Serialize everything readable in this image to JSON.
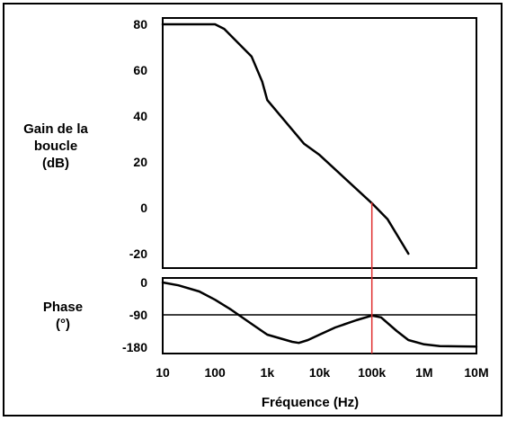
{
  "chart_data": [
    {
      "type": "line",
      "ylabel": [
        "Gain de la",
        "boucle",
        "(dB)"
      ],
      "yticks": [
        80,
        60,
        40,
        20,
        0,
        -20
      ],
      "ylim": [
        -20,
        80
      ],
      "x_scale": "log",
      "x": [
        10,
        30,
        60,
        100,
        150,
        500,
        800,
        1000,
        5000,
        10000,
        100000,
        200000,
        500000
      ],
      "values": [
        80,
        80,
        80,
        80,
        78,
        66,
        55,
        47,
        28,
        23,
        2,
        -5,
        -20
      ],
      "line_color": "#000000"
    },
    {
      "type": "line",
      "ylabel": [
        "Phase",
        "(°)"
      ],
      "yticks": [
        "0",
        "-90",
        "-180"
      ],
      "ylim": [
        -200,
        0
      ],
      "x_scale": "log",
      "x": [
        10,
        20,
        50,
        100,
        200,
        500,
        1000,
        3000,
        4000,
        6000,
        10000,
        20000,
        50000,
        100000,
        150000,
        300000,
        500000,
        1000000,
        2000000,
        10000000
      ],
      "values": [
        0,
        -8,
        -25,
        -48,
        -75,
        -115,
        -145,
        -165,
        -168,
        -160,
        -145,
        -125,
        -105,
        -92,
        -97,
        -135,
        -160,
        -172,
        -177,
        -178
      ],
      "line_color": "#000000"
    }
  ],
  "x_axis": {
    "ticks": [
      "10",
      "100",
      "1k",
      "10k",
      "100k",
      "1M",
      "10M"
    ],
    "tick_values": [
      10,
      100,
      1000,
      10000,
      100000,
      1000000,
      10000000
    ],
    "label": "Fréquence (Hz)"
  },
  "reference": {
    "crossover_frequency": 100000,
    "phase_reference_line": -90,
    "color": "#e03030"
  }
}
